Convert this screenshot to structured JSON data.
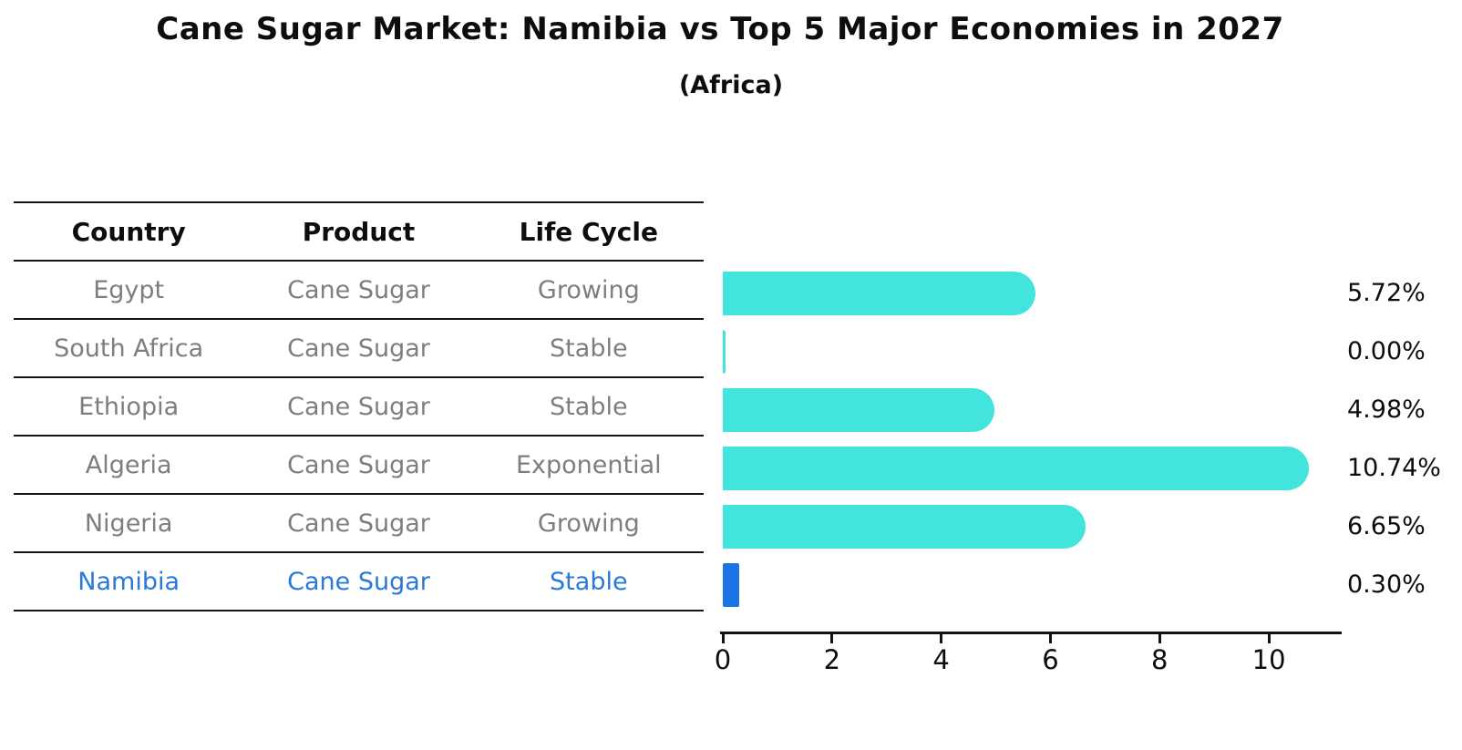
{
  "title": "Cane Sugar Market: Namibia vs Top 5 Major Economies in 2027",
  "subtitle": "(Africa)",
  "table": {
    "headers": [
      "Country",
      "Product",
      "Life Cycle"
    ]
  },
  "chart_data": {
    "type": "bar",
    "orientation": "horizontal",
    "title": "Cane Sugar Market: Namibia vs Top 5 Major Economies in 2027",
    "subtitle": "(Africa)",
    "xlabel": "",
    "ylabel": "",
    "xlim": [
      0,
      11.3
    ],
    "xticks": [
      0,
      2,
      4,
      6,
      8,
      10
    ],
    "grid": false,
    "legend": false,
    "categories": [
      "Egypt",
      "South Africa",
      "Ethiopia",
      "Algeria",
      "Nigeria",
      "Namibia"
    ],
    "rows": [
      {
        "country": "Egypt",
        "product": "Cane Sugar",
        "life_cycle": "Growing",
        "value": 5.72,
        "label": "5.72%",
        "highlight": false
      },
      {
        "country": "South Africa",
        "product": "Cane Sugar",
        "life_cycle": "Stable",
        "value": 0.0,
        "label": "0.00%",
        "highlight": false
      },
      {
        "country": "Ethiopia",
        "product": "Cane Sugar",
        "life_cycle": "Stable",
        "value": 4.98,
        "label": "4.98%",
        "highlight": false
      },
      {
        "country": "Algeria",
        "product": "Cane Sugar",
        "life_cycle": "Exponential",
        "value": 10.74,
        "label": "10.74%",
        "highlight": false
      },
      {
        "country": "Nigeria",
        "product": "Cane Sugar",
        "life_cycle": "Growing",
        "value": 6.65,
        "label": "6.65%",
        "highlight": false
      },
      {
        "country": "Namibia",
        "product": "Cane Sugar",
        "life_cycle": "Stable",
        "value": 0.3,
        "label": "0.30%",
        "highlight": true
      }
    ],
    "colors": {
      "bar": "#43e4dd",
      "highlight_bar": "#1b74e4",
      "highlight_text": "#2979d9",
      "row_text": "#7e7e7e",
      "axis": "#141414"
    }
  }
}
